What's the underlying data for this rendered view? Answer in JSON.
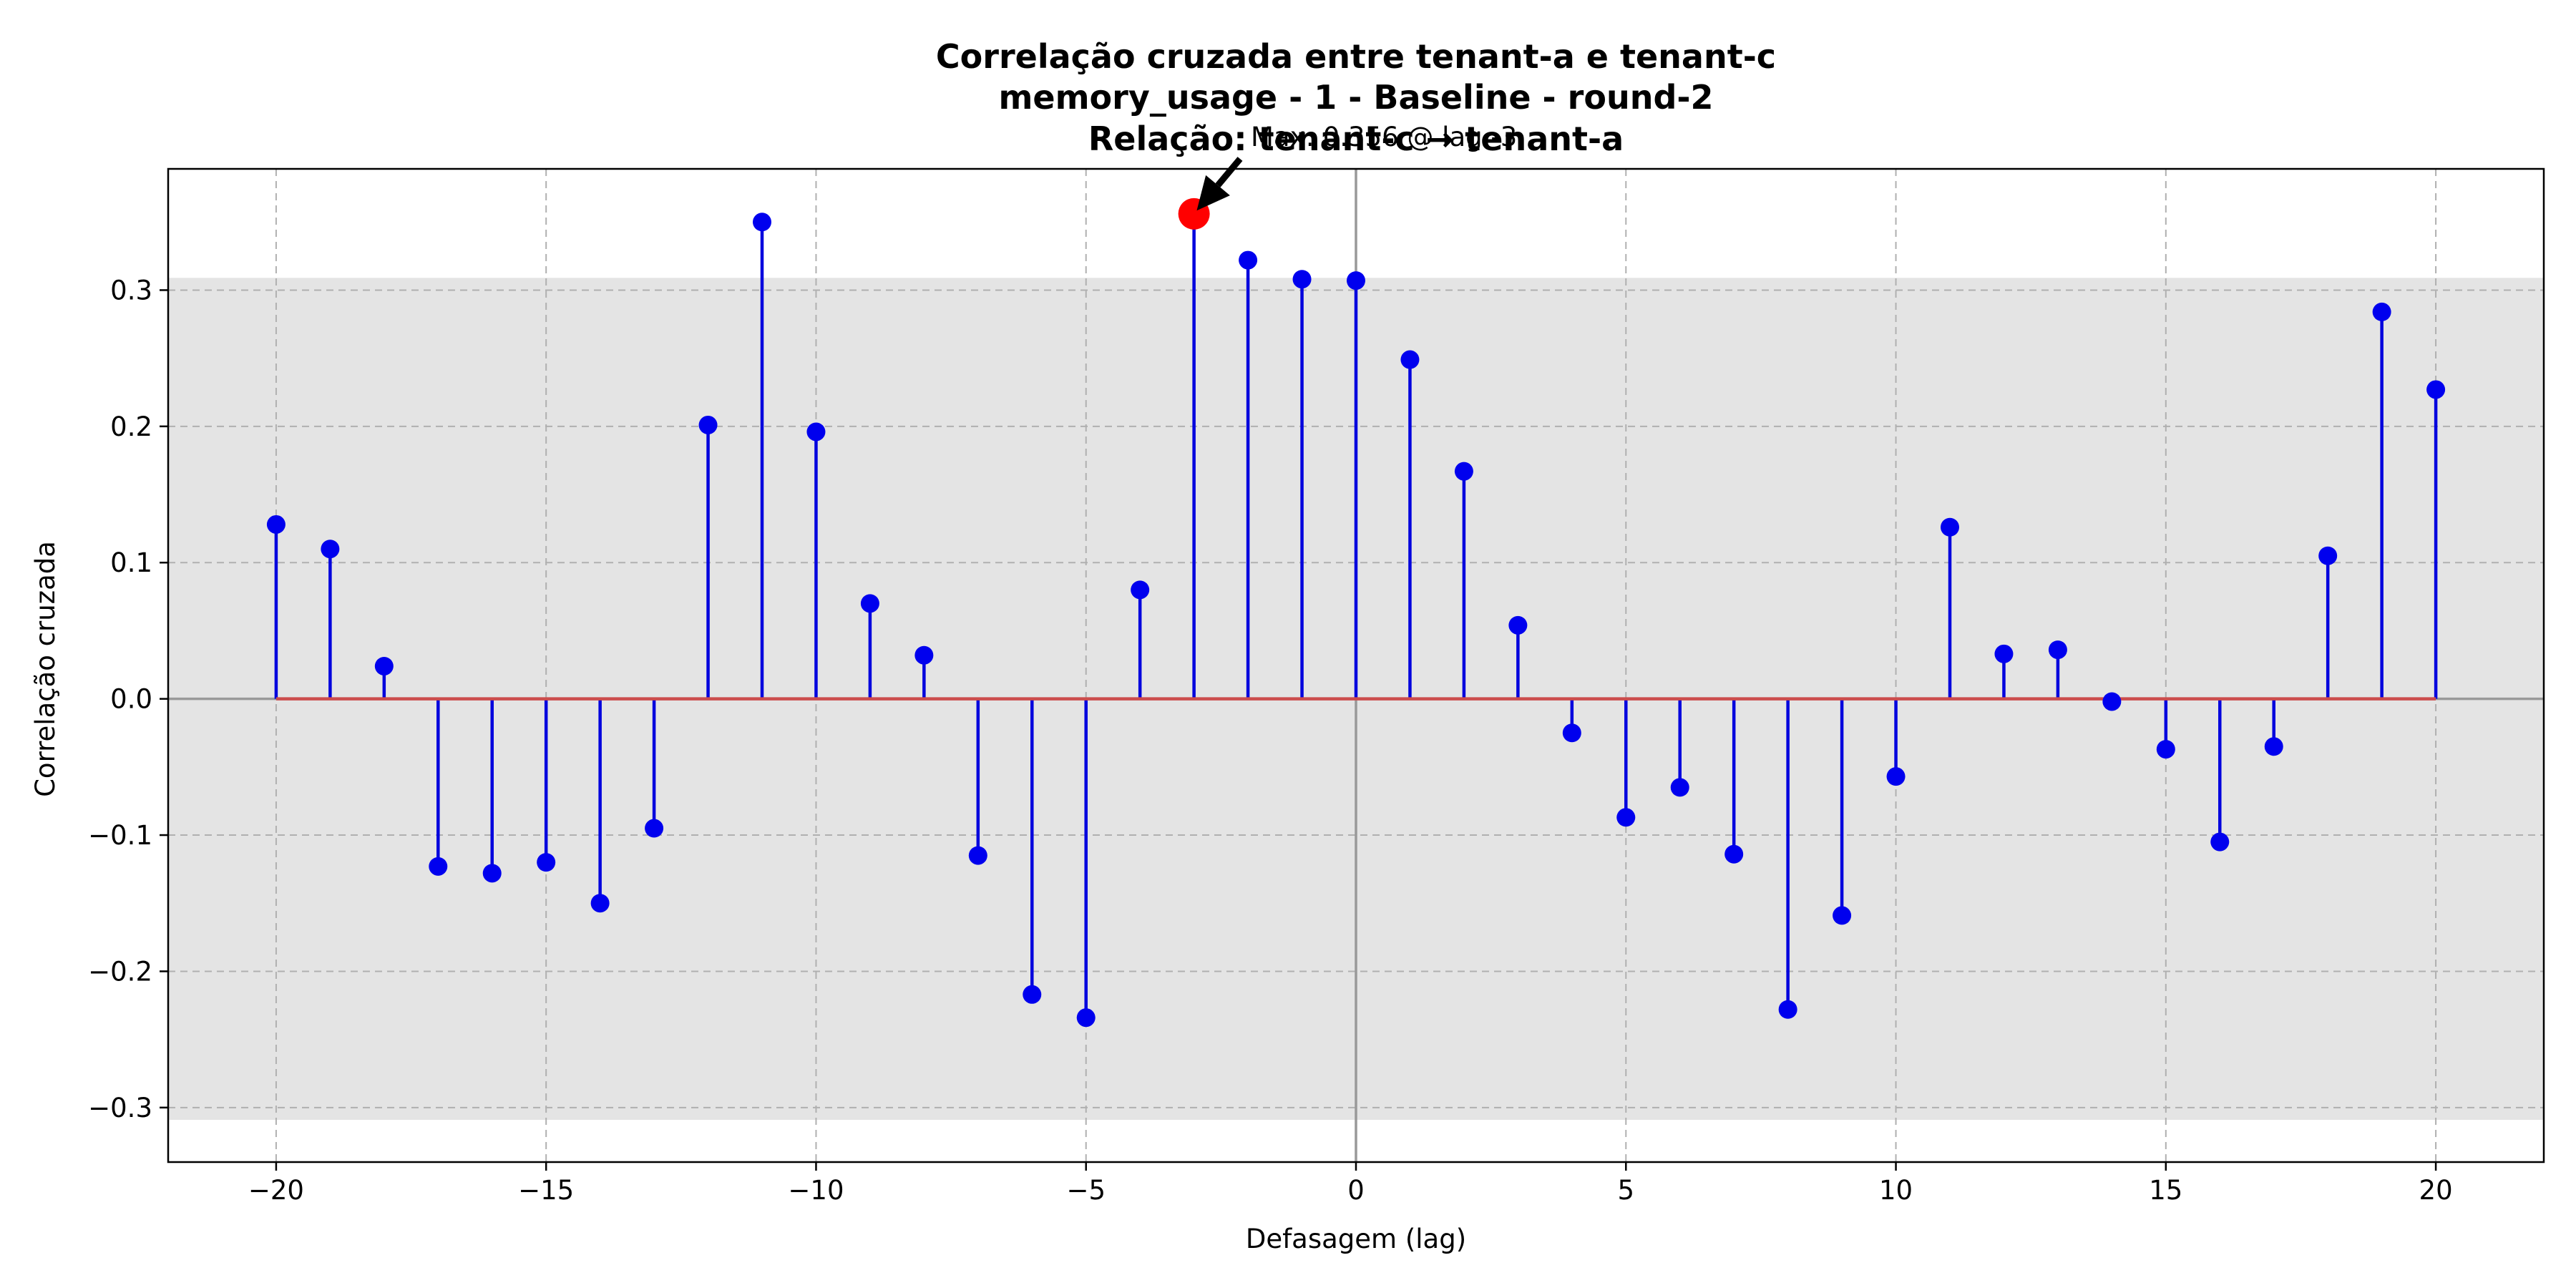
{
  "chart_data": {
    "type": "stem",
    "title_lines": [
      "Correlação cruzada entre tenant-a e tenant-c",
      "memory_usage - 1 - Baseline - round-2",
      "Relação: tenant-c → tenant-a"
    ],
    "xlabel": "Defasagem (lag)",
    "ylabel": "Correlação cruzada",
    "xlim": [
      -22,
      22
    ],
    "ylim": [
      -0.34,
      0.389
    ],
    "xticks": [
      -20,
      -15,
      -10,
      -5,
      0,
      5,
      10,
      15,
      20
    ],
    "xtick_labels": [
      "−20",
      "−15",
      "−10",
      "−5",
      "0",
      "5",
      "10",
      "15",
      "20"
    ],
    "yticks": [
      -0.3,
      -0.2,
      -0.1,
      0.0,
      0.1,
      0.2,
      0.3
    ],
    "ytick_labels": [
      "−0.3",
      "−0.2",
      "−0.1",
      "0.0",
      "0.1",
      "0.2",
      "0.3"
    ],
    "grid": true,
    "confidence_band": [
      -0.309,
      0.309
    ],
    "x": [
      -20,
      -19,
      -18,
      -17,
      -16,
      -15,
      -14,
      -13,
      -12,
      -11,
      -10,
      -9,
      -8,
      -7,
      -6,
      -5,
      -4,
      -3,
      -2,
      -1,
      0,
      1,
      2,
      3,
      4,
      5,
      6,
      7,
      8,
      9,
      10,
      11,
      12,
      13,
      14,
      15,
      16,
      17,
      18,
      19,
      20
    ],
    "values": [
      0.128,
      0.11,
      0.024,
      -0.123,
      -0.128,
      -0.12,
      -0.15,
      -0.095,
      0.201,
      0.35,
      0.196,
      0.07,
      0.032,
      -0.115,
      -0.217,
      -0.234,
      0.08,
      0.356,
      0.322,
      0.308,
      0.307,
      0.249,
      0.167,
      0.054,
      -0.025,
      -0.087,
      -0.065,
      -0.114,
      -0.228,
      -0.159,
      -0.057,
      0.126,
      0.033,
      0.036,
      -0.002,
      -0.037,
      -0.105,
      -0.035,
      0.105,
      0.284,
      0.227
    ],
    "max_point": {
      "x": -3,
      "y": 0.356
    },
    "annotation": "Max: 0.356 @ lag -3",
    "colors": {
      "stem": "#0000dd",
      "marker": "#0000ee",
      "baseline": "#cc4c4c",
      "max_marker": "#ff0000",
      "band": "#e4e4e4",
      "zero_line": "#999999"
    }
  }
}
